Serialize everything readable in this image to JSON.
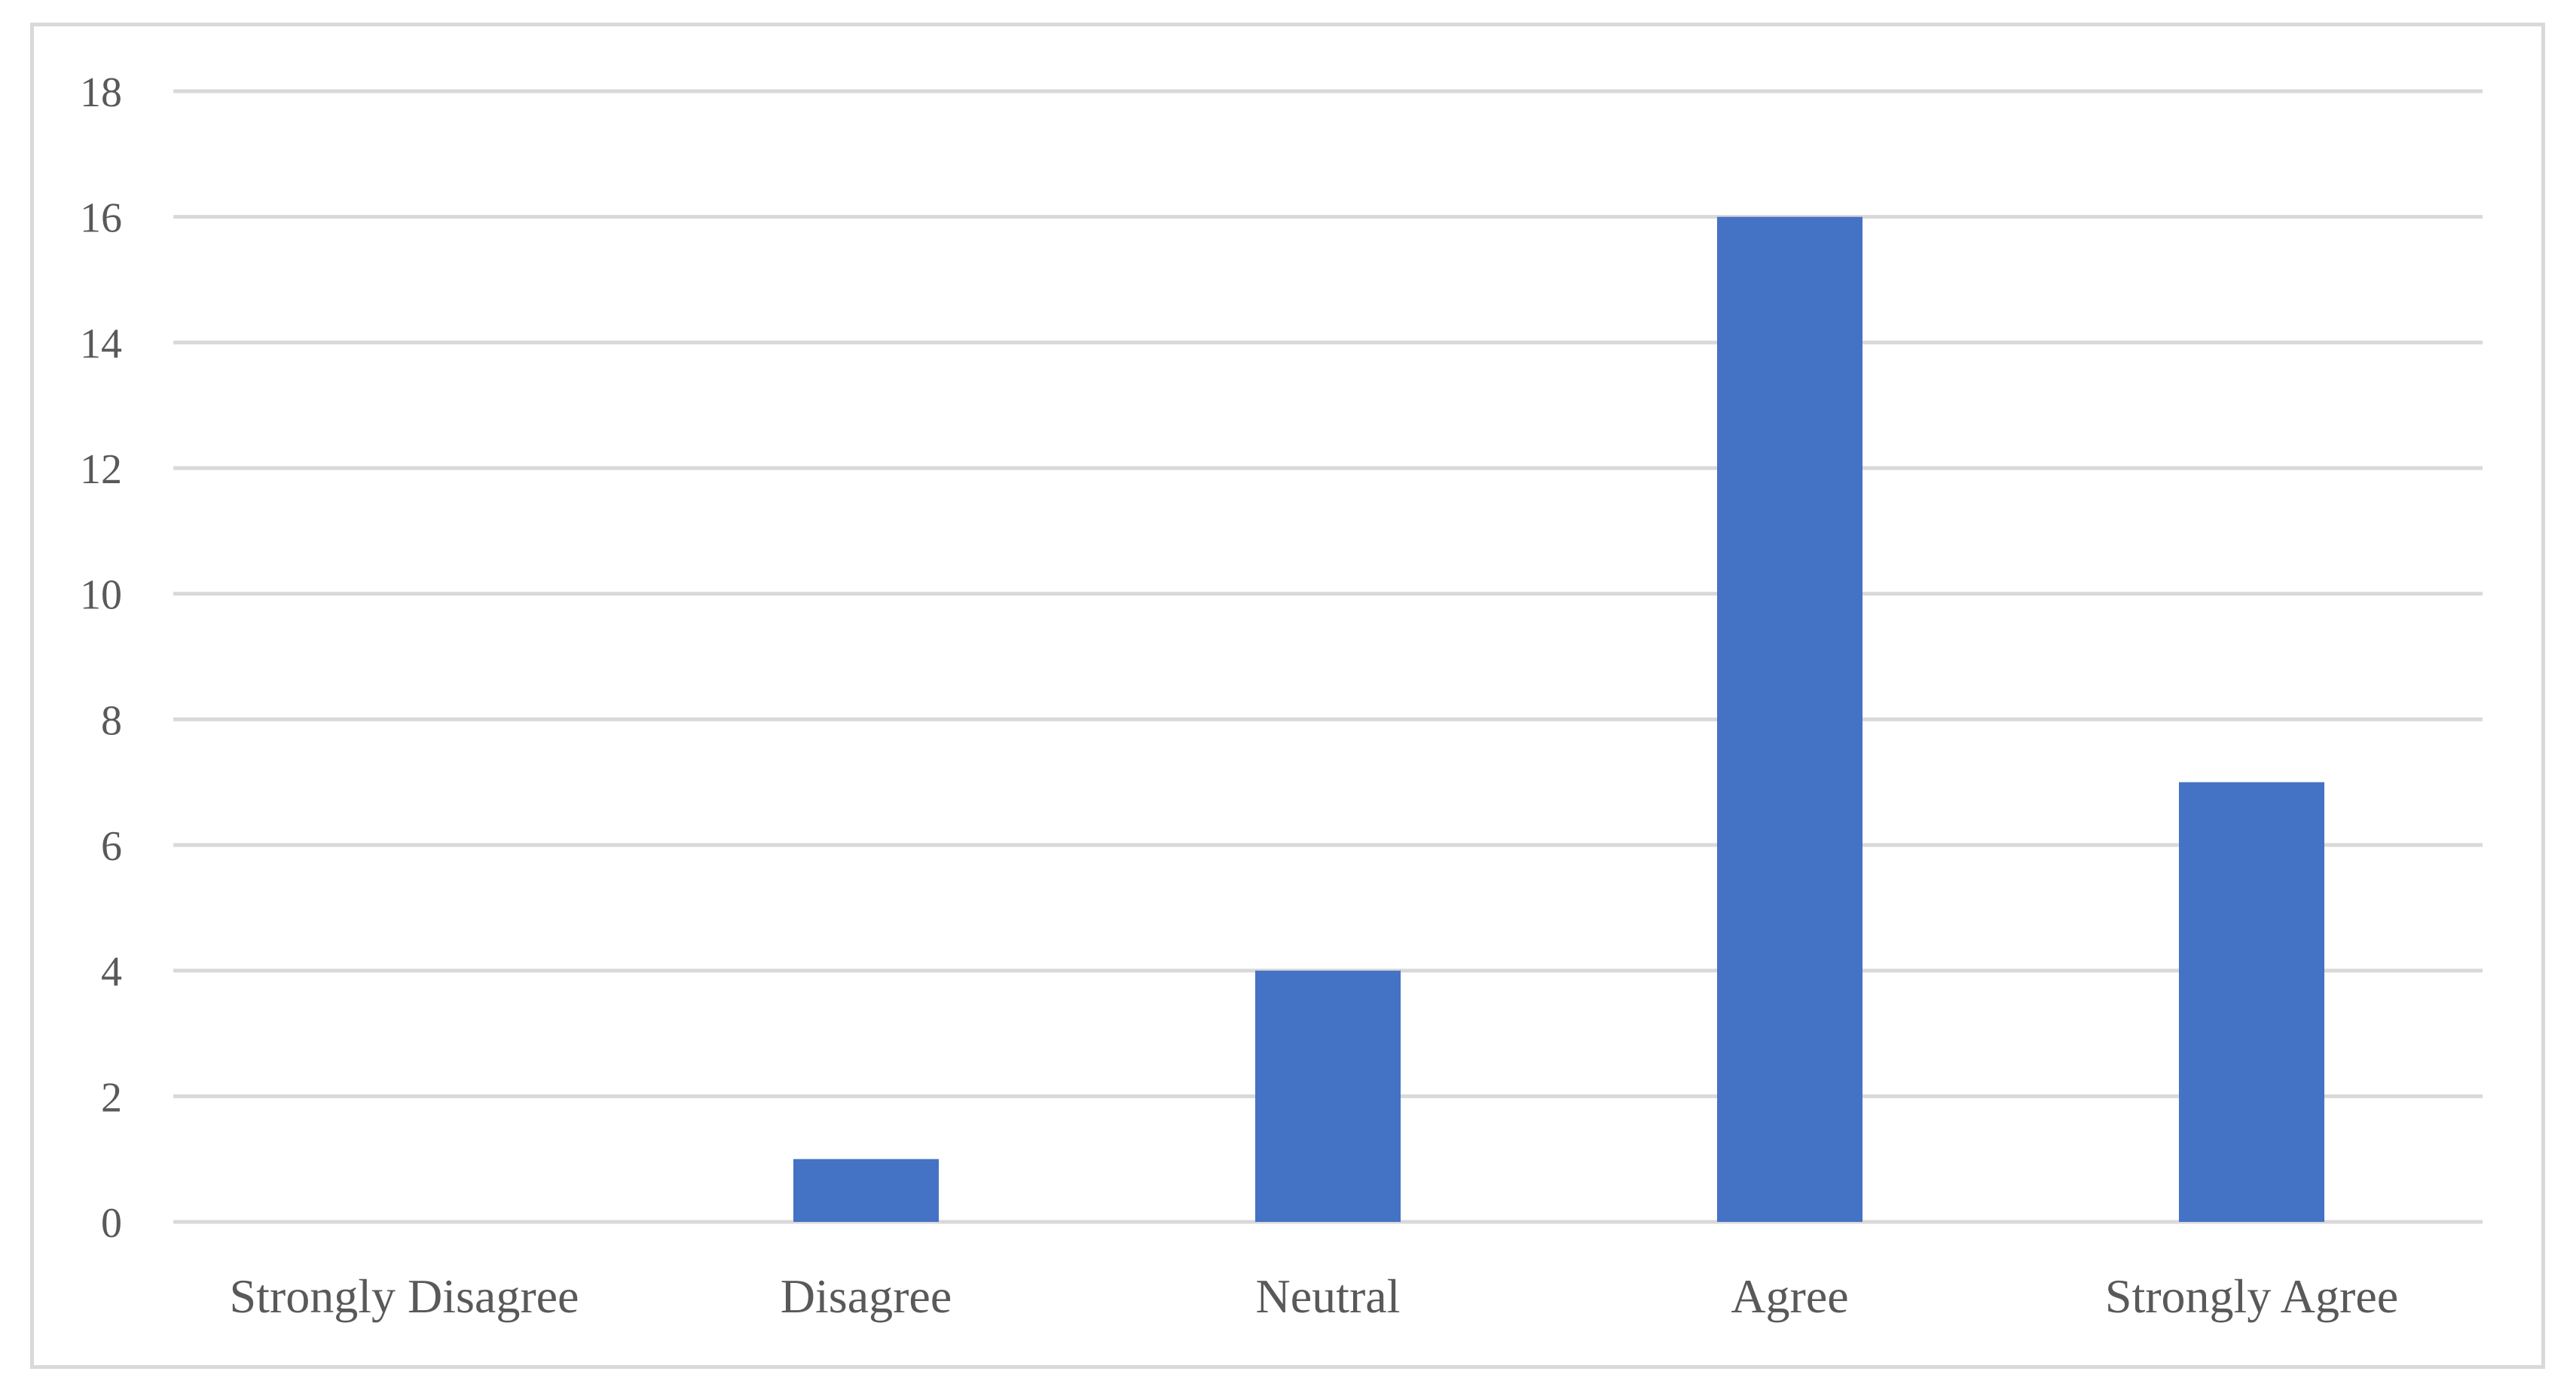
{
  "chart_data": {
    "type": "bar",
    "categories": [
      "Strongly Disagree",
      "Disagree",
      "Neutral",
      "Agree",
      "Strongly Agree"
    ],
    "values": [
      0,
      1,
      4,
      16,
      7
    ],
    "title": "",
    "xlabel": "",
    "ylabel": "",
    "ylim": [
      0,
      18
    ],
    "yticks": [
      0,
      2,
      4,
      6,
      8,
      10,
      12,
      14,
      16,
      18
    ],
    "grid": true,
    "legend": "none",
    "bar_color": "#4472c4",
    "grid_color": "#d9d9d9",
    "text_color": "#595959"
  }
}
